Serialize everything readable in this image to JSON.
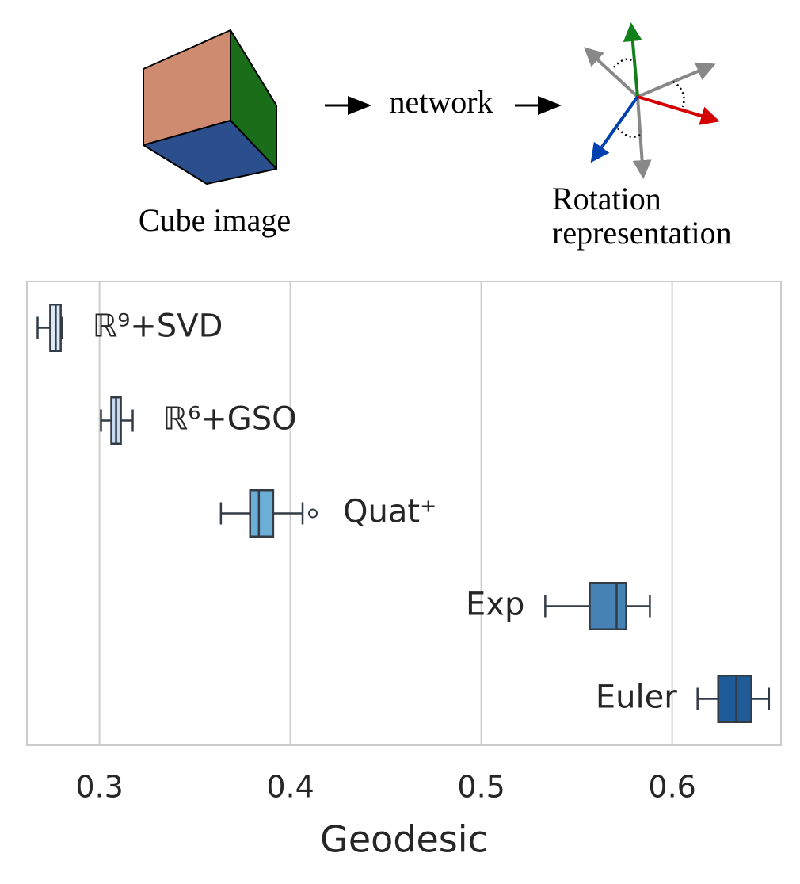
{
  "diagram": {
    "input_label": "Cube image",
    "network_label": "network",
    "output_label_line1": "Rotation",
    "output_label_line2": "representation"
  },
  "chart_data": {
    "type": "box",
    "xlabel": "Geodesic",
    "xlim": [
      0.262,
      0.657
    ],
    "xticks": [
      0.3,
      0.4,
      0.5,
      0.6
    ],
    "grid": true,
    "boxes": [
      {
        "name": "ℝ⁹+SVD",
        "color": "#dbe9f6",
        "min": 0.2676,
        "q1": 0.2742,
        "median": 0.2771,
        "q3": 0.2797,
        "max": 0.2805,
        "outliers": []
      },
      {
        "name": "ℝ⁶+GSO",
        "color": "#c6dbef",
        "min": 0.3008,
        "q1": 0.3062,
        "median": 0.3087,
        "q3": 0.3112,
        "max": 0.3174,
        "outliers": []
      },
      {
        "name": "Quat⁺",
        "color": "#6baed6",
        "min": 0.3636,
        "q1": 0.3789,
        "median": 0.3835,
        "q3": 0.391,
        "max": 0.4064,
        "outliers": [
          0.4118
        ]
      },
      {
        "name": "Exp",
        "color": "#4682b4",
        "min": 0.5335,
        "q1": 0.5568,
        "median": 0.5709,
        "q3": 0.5759,
        "max": 0.5883,
        "outliers": []
      },
      {
        "name": "Euler",
        "color": "#1f5a99",
        "min": 0.6133,
        "q1": 0.6241,
        "median": 0.6336,
        "q3": 0.6415,
        "max": 0.6507,
        "outliers": []
      }
    ]
  }
}
